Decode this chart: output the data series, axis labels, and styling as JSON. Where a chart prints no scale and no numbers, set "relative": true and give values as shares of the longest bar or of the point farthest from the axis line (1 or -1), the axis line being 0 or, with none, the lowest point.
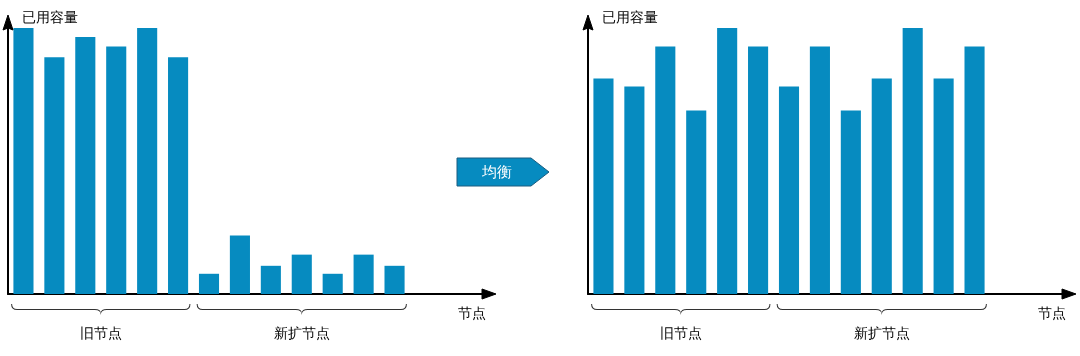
{
  "chart_data": [
    {
      "type": "bar",
      "relative": true,
      "ylabel": "已用容量",
      "xlabel": "节点",
      "color": "#068bc0",
      "categories": [
        null,
        null,
        null,
        null,
        null,
        null,
        null,
        null,
        null,
        null,
        null,
        null,
        null
      ],
      "values": [
        1,
        0.89,
        0.966,
        0.93,
        1,
        0.89,
        0.076,
        0.22,
        0.106,
        0.148,
        0.076,
        0.148,
        0.106
      ],
      "annotations": [
        "旧节点",
        "新扩节点"
      ]
    },
    {
      "type": "other",
      "title": "均衡",
      "color": "#068bc0"
    },
    {
      "type": "bar",
      "relative": true,
      "ylabel": "已用容量",
      "xlabel": "节点",
      "color": "#068bc0",
      "categories": [
        null,
        null,
        null,
        null,
        null,
        null,
        null,
        null,
        null,
        null,
        null,
        null,
        null
      ],
      "values": [
        0.81,
        0.78,
        0.93,
        0.69,
        1,
        0.93,
        0.78,
        0.93,
        0.69,
        0.81,
        1,
        0.81,
        0.93
      ],
      "annotations": [
        "旧节点",
        "新扩节点"
      ]
    }
  ]
}
